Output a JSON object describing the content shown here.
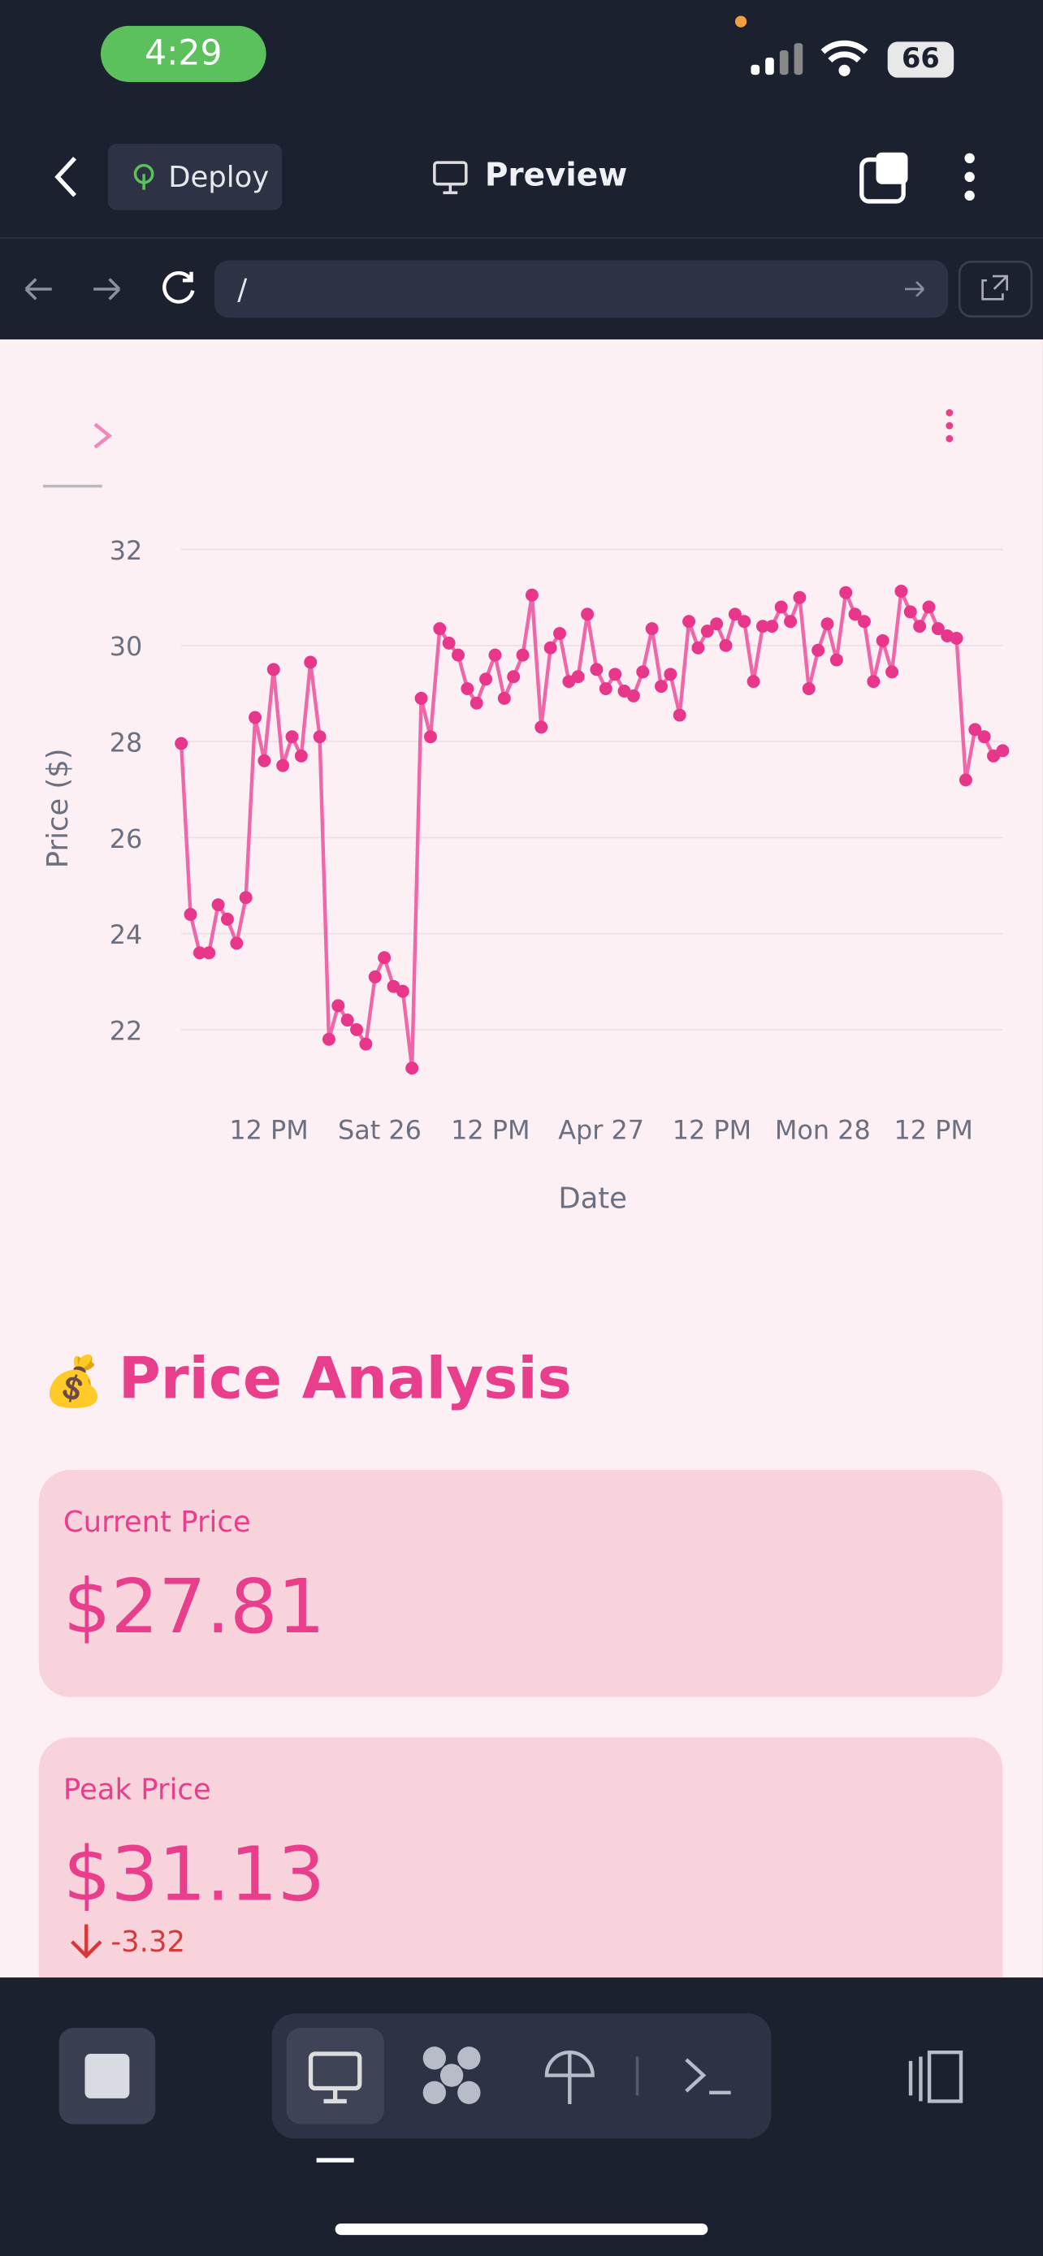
{
  "status": {
    "time": "4:29",
    "battery": "66"
  },
  "toolbar": {
    "deploy": "Deploy",
    "title": "Preview"
  },
  "address": {
    "url": "/"
  },
  "chart_data": {
    "type": "line",
    "xlabel": "Date",
    "ylabel": "Price ($)",
    "color": "#ec4f9a",
    "x": [
      0,
      1,
      2,
      3,
      4,
      5,
      6,
      7,
      8,
      9,
      10,
      11,
      12,
      13,
      14,
      15,
      16,
      17,
      18,
      19,
      20,
      21,
      22,
      23,
      24,
      25,
      26,
      27,
      28,
      29,
      30,
      31,
      32,
      33,
      34,
      35,
      36,
      37,
      38,
      39,
      40,
      41,
      42,
      43,
      44,
      45,
      46,
      47,
      48,
      49,
      50,
      51,
      52,
      53,
      54,
      55,
      56,
      57,
      58,
      59,
      60,
      61,
      62,
      63,
      64,
      65,
      66,
      67,
      68,
      69,
      70,
      71,
      72,
      73,
      74,
      75,
      76,
      77,
      78,
      79,
      80,
      81,
      82,
      83,
      84,
      85,
      86,
      87,
      88,
      89
    ],
    "values": [
      27.96,
      24.4,
      23.6,
      23.6,
      24.6,
      24.3,
      23.8,
      24.75,
      28.5,
      27.6,
      29.5,
      27.5,
      28.1,
      27.7,
      29.65,
      28.1,
      21.8,
      22.5,
      22.2,
      22.0,
      21.7,
      23.1,
      23.5,
      22.9,
      22.8,
      21.2,
      28.9,
      28.1,
      30.35,
      30.05,
      29.8,
      29.1,
      28.8,
      29.3,
      29.8,
      28.9,
      29.35,
      29.8,
      31.05,
      28.3,
      29.95,
      30.25,
      29.25,
      29.35,
      30.65,
      29.5,
      29.1,
      29.4,
      29.05,
      28.95,
      29.45,
      30.35,
      29.15,
      29.4,
      28.55,
      30.5,
      29.95,
      30.3,
      30.45,
      30.0,
      30.65,
      30.5,
      29.25,
      30.4,
      30.4,
      30.8,
      30.5,
      31.0,
      29.1,
      29.9,
      30.45,
      29.7,
      31.1,
      30.65,
      30.5,
      29.25,
      30.1,
      29.45,
      31.13,
      30.7,
      30.4,
      30.8,
      30.35,
      30.2,
      30.15,
      27.2,
      28.25,
      28.1,
      27.7,
      27.81
    ],
    "xlim": [
      0,
      89
    ],
    "xticks": [
      {
        "value": 9.5,
        "label": "12 PM"
      },
      {
        "value": 21.5,
        "label": "Sat 26"
      },
      {
        "value": 33.5,
        "label": "12 PM"
      },
      {
        "value": 45.5,
        "label": "Apr 27"
      },
      {
        "value": 57.5,
        "label": "12 PM"
      },
      {
        "value": 69.5,
        "label": "Mon 28"
      },
      {
        "value": 81.5,
        "label": "12 PM"
      }
    ],
    "ylim": [
      20.8,
      32.3
    ],
    "yticks": [
      22,
      24,
      26,
      28,
      30,
      32
    ],
    "grid": true
  },
  "section": {
    "icon": "💰",
    "title": "Price Analysis"
  },
  "cards": [
    {
      "label": "Current Price",
      "value": "$27.81"
    },
    {
      "label": "Peak Price",
      "value": "$31.13",
      "delta": "-3.32"
    }
  ]
}
